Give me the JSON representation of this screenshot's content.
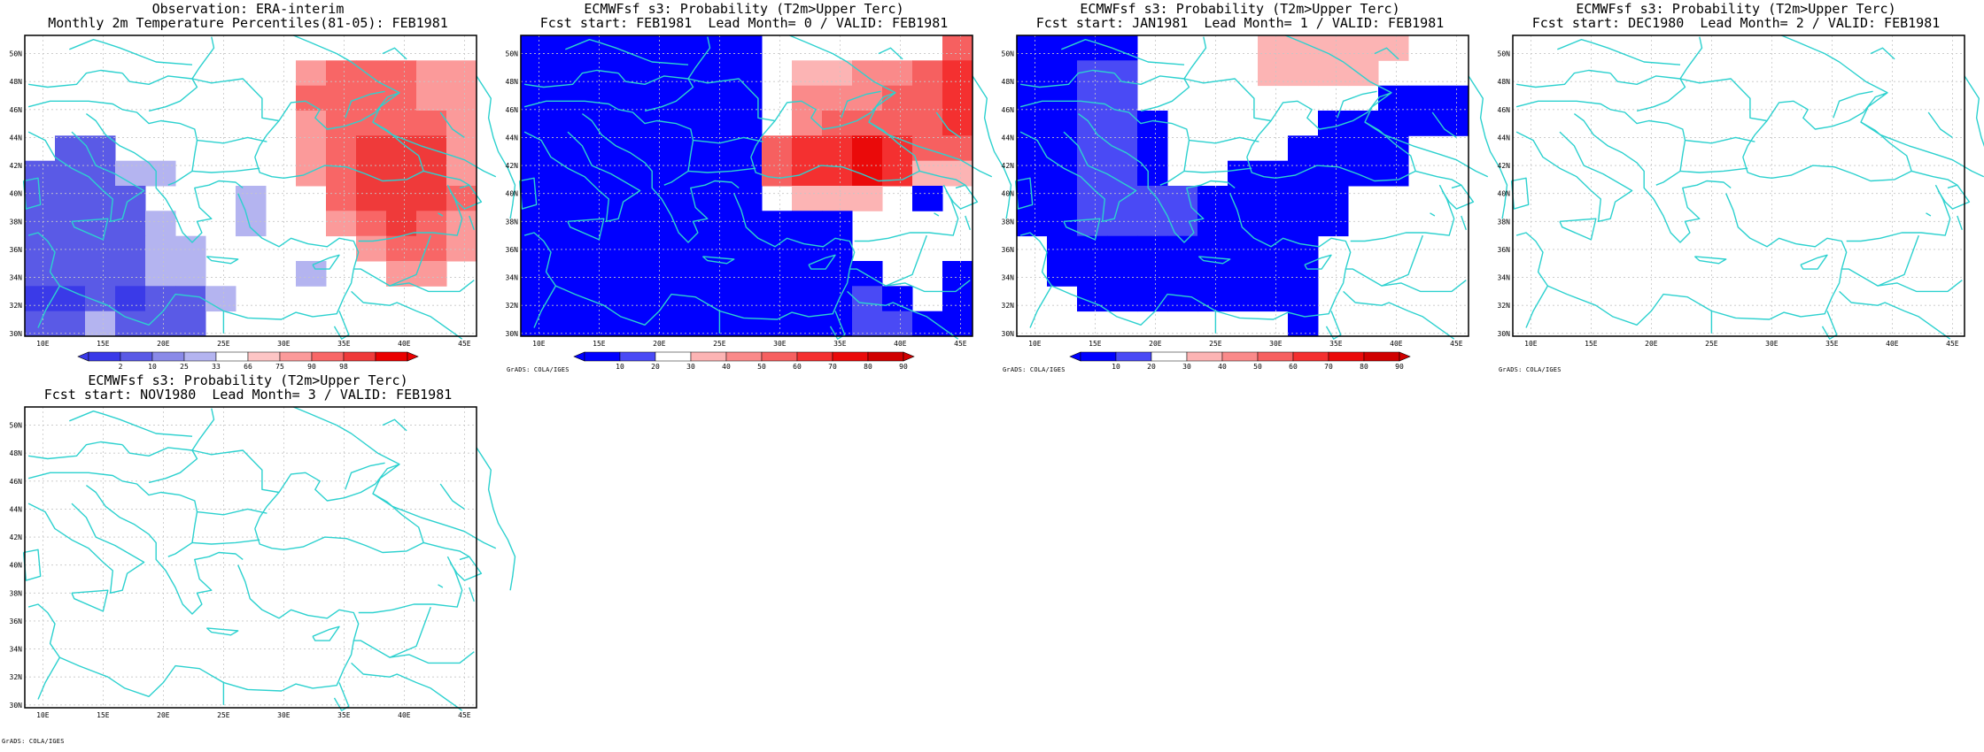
{
  "colors": {
    "coast": "#2dd1cf",
    "grid": "#c6c6c6",
    "frame": "#000000",
    "obs_scale": [
      "#3a3ae8",
      "#5a5ae6",
      "#8a8ae8",
      "#b4b4f0",
      "#ffffff",
      "#fdc5c5",
      "#fb9a9a",
      "#f86666",
      "#ef3a3a",
      "#ea0000"
    ],
    "prob_scale": [
      "#0000ff",
      "#4a4af5",
      "#ffffff",
      "#fcb4b4",
      "#fa8a8a",
      "#f66060",
      "#f43030",
      "#ea0a0a",
      "#d00000"
    ]
  },
  "panels": [
    {
      "title1": "Observation: ERA-interim",
      "title2": "Monthly 2m Temperature Percentiles(81-05): FEB1981",
      "has_colorbar": true,
      "cb_labels": [
        "2",
        "10",
        "25",
        "33",
        "66",
        "75",
        "90",
        "98"
      ],
      "has_credit": false,
      "grid_shading": [
        [
          0,
          0,
          0,
          0,
          0,
          0,
          0,
          0,
          0,
          0,
          0,
          0,
          0,
          0,
          0
        ],
        [
          0,
          0,
          0,
          0,
          0,
          0,
          0,
          0,
          0,
          7,
          8,
          8,
          8,
          7,
          7
        ],
        [
          0,
          0,
          0,
          0,
          0,
          0,
          0,
          0,
          0,
          8,
          8,
          8,
          8,
          7,
          7
        ],
        [
          0,
          0,
          0,
          0,
          0,
          0,
          0,
          0,
          0,
          7,
          8,
          8,
          8,
          8,
          7
        ],
        [
          0,
          2,
          2,
          0,
          0,
          0,
          0,
          0,
          0,
          7,
          8,
          9,
          9,
          9,
          7
        ],
        [
          2,
          2,
          2,
          3,
          3,
          0,
          0,
          0,
          0,
          7,
          8,
          9,
          9,
          9,
          7
        ],
        [
          2,
          2,
          2,
          2,
          0,
          0,
          0,
          3,
          0,
          0,
          8,
          9,
          9,
          9,
          8
        ],
        [
          2,
          2,
          2,
          2,
          3,
          0,
          0,
          3,
          0,
          0,
          7,
          8,
          9,
          8,
          7
        ],
        [
          2,
          2,
          2,
          2,
          3,
          3,
          0,
          0,
          0,
          0,
          0,
          7,
          8,
          8,
          7
        ],
        [
          2,
          2,
          2,
          2,
          3,
          3,
          0,
          0,
          0,
          3,
          0,
          0,
          7,
          7,
          0
        ],
        [
          1,
          1,
          2,
          1,
          2,
          2,
          3,
          0,
          0,
          0,
          0,
          0,
          0,
          0,
          0
        ],
        [
          2,
          2,
          3,
          2,
          2,
          2,
          0,
          0,
          0,
          0,
          0,
          0,
          0,
          0,
          0
        ]
      ]
    },
    {
      "title1": "ECMWFsf s3: Probability (T2m>Upper Terc)",
      "title2": "Fcst start: FEB1981  Lead Month= 0 / VALID: FEB1981",
      "has_colorbar": true,
      "cb_labels": [
        "10",
        "20",
        "30",
        "40",
        "50",
        "60",
        "70",
        "80",
        "90"
      ],
      "has_credit": true,
      "grid_shading": [
        [
          1,
          1,
          1,
          1,
          1,
          1,
          1,
          1,
          0,
          0,
          0,
          0,
          0,
          0,
          5
        ],
        [
          1,
          1,
          1,
          1,
          1,
          1,
          1,
          1,
          0,
          3,
          3,
          4,
          4,
          5,
          6
        ],
        [
          1,
          1,
          1,
          1,
          1,
          1,
          1,
          1,
          0,
          4,
          4,
          4,
          5,
          5,
          6
        ],
        [
          1,
          1,
          1,
          1,
          1,
          1,
          1,
          1,
          0,
          4,
          5,
          5,
          5,
          5,
          6
        ],
        [
          1,
          1,
          1,
          1,
          1,
          1,
          1,
          1,
          5,
          6,
          6,
          7,
          6,
          5,
          5
        ],
        [
          1,
          1,
          1,
          1,
          1,
          1,
          1,
          1,
          5,
          6,
          6,
          7,
          6,
          3,
          3
        ],
        [
          1,
          1,
          1,
          1,
          1,
          1,
          1,
          1,
          0,
          3,
          3,
          3,
          0,
          1,
          0
        ],
        [
          1,
          1,
          1,
          1,
          1,
          1,
          1,
          1,
          1,
          1,
          1,
          0,
          0,
          0,
          0
        ],
        [
          1,
          1,
          1,
          1,
          1,
          1,
          1,
          1,
          1,
          1,
          1,
          0,
          0,
          0,
          0
        ],
        [
          1,
          1,
          1,
          1,
          1,
          1,
          1,
          1,
          1,
          1,
          1,
          1,
          0,
          0,
          1
        ],
        [
          1,
          1,
          1,
          1,
          1,
          1,
          1,
          1,
          1,
          1,
          1,
          2,
          1,
          0,
          1
        ],
        [
          1,
          1,
          1,
          1,
          1,
          1,
          1,
          1,
          1,
          1,
          1,
          2,
          2,
          1,
          1
        ]
      ]
    },
    {
      "title1": "ECMWFsf s3: Probability (T2m>Upper Terc)",
      "title2": "Fcst start: JAN1981  Lead Month= 1 / VALID: FEB1981",
      "has_colorbar": true,
      "cb_labels": [
        "10",
        "20",
        "30",
        "40",
        "50",
        "60",
        "70",
        "80",
        "90"
      ],
      "has_credit": true,
      "grid_shading": [
        [
          1,
          1,
          1,
          1,
          0,
          0,
          0,
          0,
          3,
          3,
          3,
          3,
          3,
          0,
          0
        ],
        [
          1,
          1,
          2,
          2,
          0,
          0,
          0,
          0,
          3,
          3,
          3,
          3,
          0,
          0,
          0
        ],
        [
          1,
          1,
          2,
          2,
          0,
          0,
          0,
          0,
          0,
          0,
          0,
          0,
          1,
          1,
          1
        ],
        [
          1,
          1,
          2,
          2,
          1,
          0,
          0,
          0,
          0,
          0,
          1,
          1,
          1,
          1,
          1
        ],
        [
          1,
          1,
          2,
          2,
          1,
          0,
          0,
          0,
          0,
          1,
          1,
          1,
          1,
          0,
          0
        ],
        [
          1,
          1,
          2,
          2,
          1,
          0,
          0,
          1,
          1,
          1,
          1,
          1,
          1,
          0,
          0
        ],
        [
          1,
          1,
          2,
          2,
          2,
          2,
          1,
          1,
          1,
          1,
          1,
          0,
          0,
          0,
          0
        ],
        [
          1,
          1,
          2,
          2,
          2,
          2,
          1,
          1,
          1,
          1,
          1,
          0,
          0,
          0,
          0
        ],
        [
          0,
          1,
          1,
          1,
          1,
          1,
          1,
          1,
          1,
          1,
          0,
          0,
          0,
          0,
          0
        ],
        [
          0,
          1,
          1,
          1,
          1,
          1,
          1,
          1,
          1,
          1,
          0,
          0,
          0,
          0,
          0
        ],
        [
          0,
          0,
          1,
          1,
          1,
          1,
          1,
          1,
          1,
          1,
          0,
          0,
          0,
          0,
          0
        ],
        [
          0,
          0,
          0,
          0,
          0,
          0,
          0,
          0,
          0,
          1,
          0,
          0,
          0,
          0,
          0
        ]
      ]
    },
    {
      "title1": "ECMWFsf s3: Probability (T2m>Upper Terc)",
      "title2": "Fcst start: DEC1980  Lead Month= 2 / VALID: FEB1981",
      "has_colorbar": false,
      "has_credit": true,
      "grid_shading": []
    },
    {
      "title1": "ECMWFsf s3: Probability (T2m>Upper Terc)",
      "title2": "Fcst start: NOV1980  Lead Month= 3 / VALID: FEB1981",
      "has_colorbar": false,
      "has_credit": true,
      "grid_shading": []
    }
  ],
  "lon_labels": [
    "10E",
    "15E",
    "20E",
    "25E",
    "30E",
    "35E",
    "40E",
    "45E"
  ],
  "lat_labels": [
    "30N",
    "32N",
    "34N",
    "36N",
    "38N",
    "40N",
    "42N",
    "44N",
    "46N",
    "48N",
    "50N"
  ],
  "credit_text": "GrADS: COLA/IGES"
}
